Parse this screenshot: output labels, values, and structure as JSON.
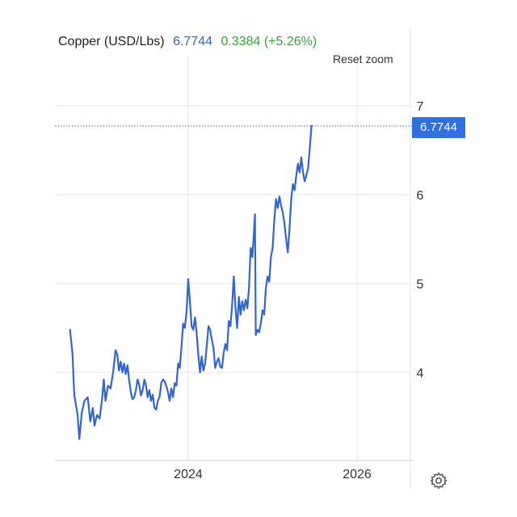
{
  "header": {
    "title": "Copper (USD/Lbs)",
    "price": "6.7744",
    "change": "0.3384 (+5.26%)"
  },
  "controls": {
    "reset_zoom_label": "Reset zoom",
    "settings_icon": "gear-icon"
  },
  "colors": {
    "line": "#3366cc",
    "change_positive": "#2fa82f",
    "last_price_tag": "#2f6fe0",
    "grid": "#e6e6e6"
  },
  "chart_data": {
    "type": "line",
    "title": "",
    "xlabel": "",
    "ylabel": "",
    "x_ticks": [
      "2024",
      "2026"
    ],
    "y_ticks": [
      4,
      5,
      6,
      7
    ],
    "ylim": [
      3.0,
      7.5
    ],
    "xlim": [
      2022.6,
      2026.65
    ],
    "grid": true,
    "last_value": 6.7744,
    "last_value_label": "6.7744",
    "series": [
      {
        "points": [
          [
            2022.6,
            4.48
          ],
          [
            2022.63,
            4.2
          ],
          [
            2022.65,
            3.75
          ],
          [
            2022.69,
            3.52
          ],
          [
            2022.71,
            3.25
          ],
          [
            2022.74,
            3.55
          ],
          [
            2022.77,
            3.68
          ],
          [
            2022.81,
            3.72
          ],
          [
            2022.84,
            3.45
          ],
          [
            2022.87,
            3.6
          ],
          [
            2022.89,
            3.4
          ],
          [
            2022.92,
            3.52
          ],
          [
            2022.95,
            3.48
          ],
          [
            2022.98,
            3.7
          ],
          [
            2023.0,
            3.92
          ],
          [
            2023.02,
            3.68
          ],
          [
            2023.05,
            3.85
          ],
          [
            2023.08,
            3.82
          ],
          [
            2023.11,
            4.0
          ],
          [
            2023.14,
            4.25
          ],
          [
            2023.16,
            4.2
          ],
          [
            2023.18,
            4.02
          ],
          [
            2023.2,
            4.12
          ],
          [
            2023.22,
            4.0
          ],
          [
            2023.24,
            4.1
          ],
          [
            2023.26,
            3.98
          ],
          [
            2023.28,
            4.08
          ],
          [
            2023.3,
            3.92
          ],
          [
            2023.32,
            3.78
          ],
          [
            2023.34,
            3.7
          ],
          [
            2023.36,
            3.72
          ],
          [
            2023.38,
            3.8
          ],
          [
            2023.4,
            3.92
          ],
          [
            2023.42,
            3.86
          ],
          [
            2023.44,
            3.74
          ],
          [
            2023.46,
            3.8
          ],
          [
            2023.48,
            3.92
          ],
          [
            2023.5,
            3.85
          ],
          [
            2023.52,
            3.72
          ],
          [
            2023.54,
            3.8
          ],
          [
            2023.56,
            3.68
          ],
          [
            2023.58,
            3.75
          ],
          [
            2023.6,
            3.6
          ],
          [
            2023.62,
            3.58
          ],
          [
            2023.64,
            3.68
          ],
          [
            2023.66,
            3.72
          ],
          [
            2023.68,
            3.88
          ],
          [
            2023.7,
            3.92
          ],
          [
            2023.72,
            3.9
          ],
          [
            2023.74,
            3.85
          ],
          [
            2023.76,
            3.78
          ],
          [
            2023.78,
            3.68
          ],
          [
            2023.8,
            3.82
          ],
          [
            2023.82,
            3.72
          ],
          [
            2023.84,
            3.88
          ],
          [
            2023.86,
            3.85
          ],
          [
            2023.88,
            4.1
          ],
          [
            2023.9,
            4.05
          ],
          [
            2023.92,
            4.28
          ],
          [
            2023.94,
            4.55
          ],
          [
            2023.96,
            4.5
          ],
          [
            2023.98,
            4.68
          ],
          [
            2024.0,
            5.05
          ],
          [
            2024.02,
            4.8
          ],
          [
            2024.04,
            4.52
          ],
          [
            2024.06,
            4.48
          ],
          [
            2024.08,
            4.62
          ],
          [
            2024.1,
            4.45
          ],
          [
            2024.12,
            4.2
          ],
          [
            2024.14,
            4.0
          ],
          [
            2024.16,
            4.18
          ],
          [
            2024.18,
            4.02
          ],
          [
            2024.2,
            4.1
          ],
          [
            2024.22,
            4.3
          ],
          [
            2024.24,
            4.52
          ],
          [
            2024.26,
            4.48
          ],
          [
            2024.28,
            4.36
          ],
          [
            2024.3,
            4.28
          ],
          [
            2024.32,
            4.05
          ],
          [
            2024.34,
            4.12
          ],
          [
            2024.36,
            4.16
          ],
          [
            2024.38,
            4.06
          ],
          [
            2024.4,
            4.05
          ],
          [
            2024.42,
            4.22
          ],
          [
            2024.44,
            4.32
          ],
          [
            2024.46,
            4.25
          ],
          [
            2024.48,
            4.58
          ],
          [
            2024.5,
            4.52
          ],
          [
            2024.52,
            4.75
          ],
          [
            2024.54,
            5.08
          ],
          [
            2024.56,
            4.72
          ],
          [
            2024.58,
            4.5
          ],
          [
            2024.6,
            4.85
          ],
          [
            2024.62,
            4.65
          ],
          [
            2024.64,
            4.8
          ],
          [
            2024.66,
            4.7
          ],
          [
            2024.68,
            4.82
          ],
          [
            2024.7,
            4.72
          ],
          [
            2024.72,
            4.95
          ],
          [
            2024.74,
            5.4
          ],
          [
            2024.76,
            5.3
          ],
          [
            2024.78,
            5.6
          ],
          [
            2024.79,
            5.78
          ],
          [
            2024.8,
            4.42
          ],
          [
            2024.82,
            4.48
          ],
          [
            2024.84,
            4.45
          ],
          [
            2024.86,
            4.55
          ],
          [
            2024.88,
            4.7
          ],
          [
            2024.9,
            4.65
          ],
          [
            2024.92,
            4.95
          ],
          [
            2024.94,
            5.08
          ],
          [
            2024.96,
            5.02
          ],
          [
            2024.98,
            5.3
          ],
          [
            2025.0,
            5.4
          ],
          [
            2025.02,
            5.72
          ],
          [
            2025.04,
            5.95
          ],
          [
            2025.06,
            5.85
          ],
          [
            2025.08,
            5.98
          ],
          [
            2025.1,
            5.88
          ],
          [
            2025.12,
            5.8
          ],
          [
            2025.14,
            5.68
          ],
          [
            2025.16,
            5.5
          ],
          [
            2025.18,
            5.35
          ],
          [
            2025.2,
            5.62
          ],
          [
            2025.22,
            5.95
          ],
          [
            2025.24,
            6.12
          ],
          [
            2025.26,
            6.05
          ],
          [
            2025.28,
            6.22
          ],
          [
            2025.3,
            6.35
          ],
          [
            2025.32,
            6.25
          ],
          [
            2025.34,
            6.42
          ],
          [
            2025.36,
            6.25
          ],
          [
            2025.38,
            6.15
          ],
          [
            2025.4,
            6.22
          ],
          [
            2025.42,
            6.3
          ],
          [
            2025.44,
            6.52
          ],
          [
            2025.46,
            6.7744
          ]
        ]
      }
    ]
  }
}
